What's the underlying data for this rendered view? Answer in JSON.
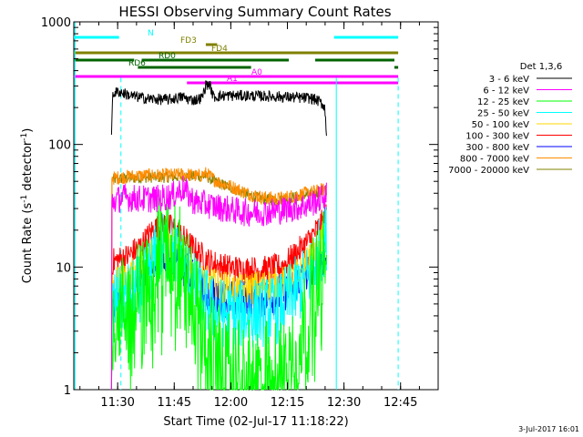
{
  "chart_data": {
    "type": "line",
    "title": "HESSI Observing Summary Count Rates",
    "xlabel": "Start Time (02-Jul-17 11:18:22)",
    "ylabel_main": "Count Rate (s",
    "ylabel_sup1": "-1",
    "ylabel_mid": " detector",
    "ylabel_sup2": "-1",
    "ylabel_end": ")",
    "y_scale": "log",
    "ylim": [
      1,
      1000
    ],
    "xlim": [
      "11:18:22",
      "12:55:00"
    ],
    "x_unit": "minutes since 11:18:22 (axis shows clock time)",
    "x_tick_labels": [
      "11:30",
      "11:45",
      "12:00",
      "12:15",
      "12:30",
      "12:45"
    ],
    "x_tick_minutes": [
      11.63,
      26.63,
      41.63,
      56.63,
      71.63,
      86.63
    ],
    "y_tick_labels": [
      "1",
      "10",
      "100",
      "1000"
    ],
    "y_tick_values": [
      1,
      10,
      100,
      1000
    ],
    "legend": {
      "title": "Det 1,3,6",
      "placement": "right"
    },
    "series": [
      {
        "name": "3 - 6 keV",
        "color": "#000000",
        "noise": 0.04,
        "start": 10,
        "end": 67,
        "points": [
          [
            10,
            120
          ],
          [
            10.3,
            260
          ],
          [
            12,
            270
          ],
          [
            15,
            250
          ],
          [
            20,
            235
          ],
          [
            25,
            232
          ],
          [
            29,
            245
          ],
          [
            30,
            235
          ],
          [
            32,
            230
          ],
          [
            34,
            240
          ],
          [
            35,
            305
          ],
          [
            36,
            310
          ],
          [
            37,
            245
          ],
          [
            40,
            250
          ],
          [
            45,
            250
          ],
          [
            50,
            248
          ],
          [
            55,
            245
          ],
          [
            60,
            240
          ],
          [
            63,
            238
          ],
          [
            65,
            225
          ],
          [
            66.5,
            205
          ],
          [
            67,
            125
          ]
        ]
      },
      {
        "name": "6 - 12 keV",
        "color": "#ff00ff",
        "noise": 0.1,
        "start": 10,
        "end": 67,
        "points": [
          [
            10,
            1
          ],
          [
            10.1,
            34
          ],
          [
            13,
            37
          ],
          [
            18,
            36
          ],
          [
            22,
            36
          ],
          [
            26,
            38
          ],
          [
            29,
            44
          ],
          [
            30,
            40
          ],
          [
            32,
            34
          ],
          [
            36,
            32
          ],
          [
            40,
            30
          ],
          [
            45,
            28
          ],
          [
            50,
            28
          ],
          [
            55,
            29
          ],
          [
            60,
            31
          ],
          [
            63,
            33
          ],
          [
            66,
            37
          ],
          [
            67,
            38
          ]
        ]
      },
      {
        "name": "12 - 25 keV",
        "color": "#00ff00",
        "noise": 0.4,
        "start": 10,
        "end": 67,
        "points": [
          [
            10,
            1
          ],
          [
            10.2,
            4
          ],
          [
            14,
            5
          ],
          [
            18,
            6
          ],
          [
            20,
            9
          ],
          [
            22,
            15
          ],
          [
            25,
            16
          ],
          [
            28,
            12
          ],
          [
            31,
            7
          ],
          [
            34,
            3
          ],
          [
            37,
            2
          ],
          [
            40,
            1.6
          ],
          [
            45,
            1.3
          ],
          [
            50,
            1.3
          ],
          [
            55,
            1.5
          ],
          [
            58,
            2.2
          ],
          [
            61,
            3.5
          ],
          [
            64,
            7
          ],
          [
            66,
            11
          ],
          [
            67,
            10
          ]
        ]
      },
      {
        "name": "25 - 50 keV",
        "color": "#00ffff",
        "noise": 0.25,
        "start": 10,
        "end": 67,
        "points": [
          [
            10,
            1
          ],
          [
            10.2,
            5
          ],
          [
            14,
            5.5
          ],
          [
            18,
            7
          ],
          [
            21,
            11
          ],
          [
            24,
            15
          ],
          [
            27,
            13
          ],
          [
            30,
            9
          ],
          [
            33,
            6
          ],
          [
            37,
            4.5
          ],
          [
            42,
            4
          ],
          [
            48,
            4.2
          ],
          [
            54,
            4.5
          ],
          [
            58,
            6
          ],
          [
            62,
            8
          ],
          [
            65,
            13
          ],
          [
            67,
            18
          ]
        ]
      },
      {
        "name": "50 - 100 keV",
        "color": "#ffd700",
        "noise": 0.12,
        "start": 10,
        "end": 67,
        "points": [
          [
            10,
            1
          ],
          [
            10.2,
            7
          ],
          [
            14,
            8
          ],
          [
            18,
            10
          ],
          [
            21,
            14
          ],
          [
            24,
            17
          ],
          [
            27,
            15
          ],
          [
            30,
            11
          ],
          [
            33,
            8
          ],
          [
            38,
            7
          ],
          [
            44,
            6.5
          ],
          [
            50,
            7
          ],
          [
            56,
            7.5
          ],
          [
            60,
            9
          ],
          [
            64,
            13
          ],
          [
            67,
            19
          ]
        ]
      },
      {
        "name": "100 - 300 keV",
        "color": "#ff0000",
        "noise": 0.1,
        "start": 10,
        "end": 67,
        "points": [
          [
            10,
            1
          ],
          [
            10.2,
            11
          ],
          [
            14,
            12
          ],
          [
            18,
            15
          ],
          [
            21,
            20
          ],
          [
            24,
            22
          ],
          [
            27,
            20
          ],
          [
            30,
            16
          ],
          [
            33,
            13
          ],
          [
            36,
            11
          ],
          [
            40,
            10
          ],
          [
            45,
            9.5
          ],
          [
            50,
            9.5
          ],
          [
            55,
            10
          ],
          [
            58,
            12
          ],
          [
            62,
            16
          ],
          [
            65,
            21
          ],
          [
            67,
            26
          ]
        ]
      },
      {
        "name": "300 - 800 keV",
        "color": "#0000ff",
        "noise": 0.14,
        "start": 10,
        "end": 67,
        "points": [
          [
            10,
            1
          ],
          [
            10.2,
            5.5
          ],
          [
            14,
            6.5
          ],
          [
            18,
            9
          ],
          [
            21,
            11
          ],
          [
            24,
            13
          ],
          [
            27,
            12
          ],
          [
            30,
            9
          ],
          [
            33,
            7
          ],
          [
            36,
            6
          ],
          [
            40,
            5.5
          ],
          [
            45,
            5.5
          ],
          [
            50,
            5.5
          ],
          [
            55,
            6
          ],
          [
            58,
            7
          ],
          [
            62,
            9
          ],
          [
            65,
            11
          ],
          [
            67,
            12
          ]
        ]
      },
      {
        "name": "800 - 7000 keV",
        "color": "#ff8c00",
        "noise": 0.05,
        "start": 10,
        "end": 67,
        "points": [
          [
            10,
            1
          ],
          [
            10.1,
            53
          ],
          [
            15,
            55
          ],
          [
            20,
            56
          ],
          [
            25,
            56
          ],
          [
            30,
            57
          ],
          [
            33,
            55
          ],
          [
            35,
            58
          ],
          [
            38,
            50
          ],
          [
            42,
            45
          ],
          [
            46,
            40
          ],
          [
            50,
            37
          ],
          [
            54,
            36
          ],
          [
            58,
            38
          ],
          [
            62,
            40
          ],
          [
            65,
            42
          ],
          [
            67,
            43
          ]
        ]
      },
      {
        "name": "7000 - 20000 keV",
        "color": "#808000",
        "noise": 0.04,
        "start": 10,
        "end": 67,
        "points": [
          [
            10,
            1
          ],
          [
            10.1,
            52
          ],
          [
            15,
            53
          ],
          [
            20,
            54
          ],
          [
            25,
            54
          ],
          [
            30,
            55
          ],
          [
            35,
            55
          ],
          [
            38,
            49
          ],
          [
            42,
            44
          ],
          [
            46,
            39
          ],
          [
            50,
            36
          ],
          [
            54,
            35
          ],
          [
            58,
            37
          ],
          [
            62,
            39
          ],
          [
            65,
            41
          ],
          [
            67,
            42
          ]
        ]
      }
    ],
    "flag_bars": [
      {
        "label": "N",
        "color": "#00ffff",
        "segments": [
          [
            0,
            12
          ],
          [
            69,
            86
          ]
        ]
      },
      {
        "label": "FD3",
        "color": "#808000",
        "segments": [
          [
            35,
            38
          ]
        ]
      },
      {
        "label": "FD4",
        "color": "#808000",
        "segments": [
          [
            0,
            86
          ]
        ]
      },
      {
        "label": "RD0",
        "color": "#006400",
        "segments": [
          [
            0,
            16
          ],
          [
            18,
            57
          ],
          [
            64,
            85
          ]
        ]
      },
      {
        "label": "RD6",
        "color": "#006400",
        "segments": [
          [
            17,
            47
          ],
          [
            85,
            86
          ]
        ]
      },
      {
        "label": "A0",
        "color": "#ff00ff",
        "segments": [
          [
            0,
            86
          ]
        ]
      },
      {
        "label": "A1",
        "color": "#ff00ff",
        "segments": [
          [
            30,
            86
          ]
        ]
      }
    ],
    "vertical_lines": [
      {
        "color": "#00ffff",
        "style": "dashed",
        "x_min": 12.5
      },
      {
        "color": "#00ffff",
        "style": "solid",
        "x_min": 69.6
      },
      {
        "color": "#00ffff",
        "style": "dashed",
        "x_min": 86.0
      },
      {
        "color": "#00ffff",
        "style": "solid",
        "x_min": 0.3
      }
    ]
  },
  "footer": {
    "timestamp": "3-Jul-2017 16:01"
  }
}
